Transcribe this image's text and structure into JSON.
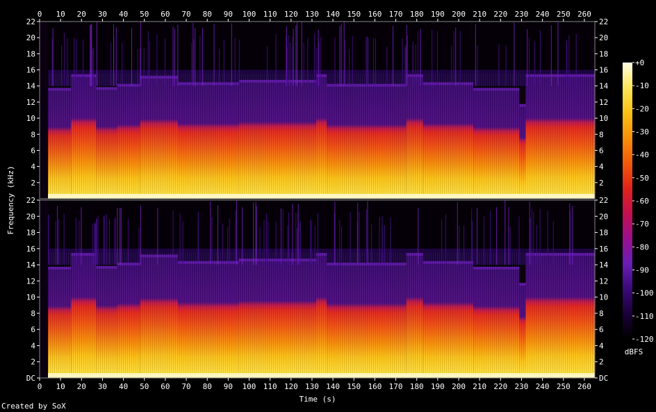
{
  "chart_data": {
    "type": "heatmap",
    "xlabel": "Time (s)",
    "ylabel": "Frequency (kHz)",
    "xlim": [
      0,
      265
    ],
    "ylim": [
      0,
      22
    ],
    "x_ticks": [
      "0",
      "10",
      "20",
      "30",
      "40",
      "50",
      "60",
      "70",
      "80",
      "90",
      "100",
      "110",
      "120",
      "130",
      "140",
      "150",
      "160",
      "170",
      "180",
      "190",
      "200",
      "210",
      "220",
      "230",
      "240",
      "250",
      "260"
    ],
    "y_ticks_channel_top": [
      "2",
      "4",
      "6",
      "8",
      "10",
      "12",
      "14",
      "16",
      "18",
      "20",
      "22"
    ],
    "y_ticks_channel_bottom": [
      "DC",
      "2",
      "4",
      "6",
      "8",
      "10",
      "12",
      "14",
      "16",
      "18",
      "20",
      "22"
    ],
    "channels": 2,
    "colorbar": {
      "label": "dBFS",
      "range": [
        -120,
        0
      ],
      "ticks": [
        "+0",
        "-10",
        "-20",
        "-30",
        "-40",
        "-50",
        "-60",
        "-70",
        "-80",
        "-90",
        "-100",
        "-110",
        "-120"
      ],
      "colors": [
        "#000000",
        "#1a0038",
        "#3b0a7a",
        "#6a1db5",
        "#9a0f8e",
        "#c3104f",
        "#e2231a",
        "#f25a0a",
        "#f9900a",
        "#fcc015",
        "#fde65a",
        "#fffde6"
      ]
    },
    "cutoff_khz_segments": [
      {
        "t_start": 4,
        "t_end": 15,
        "khz": 13.5
      },
      {
        "t_start": 15,
        "t_end": 27,
        "khz": 15.2
      },
      {
        "t_start": 27,
        "t_end": 37,
        "khz": 13.6
      },
      {
        "t_start": 37,
        "t_end": 48,
        "khz": 14.0
      },
      {
        "t_start": 48,
        "t_end": 66,
        "khz": 15.0
      },
      {
        "t_start": 66,
        "t_end": 95,
        "khz": 14.2
      },
      {
        "t_start": 95,
        "t_end": 132,
        "khz": 14.5
      },
      {
        "t_start": 132,
        "t_end": 137,
        "khz": 15.2
      },
      {
        "t_start": 137,
        "t_end": 175,
        "khz": 14.0
      },
      {
        "t_start": 175,
        "t_end": 183,
        "khz": 15.2
      },
      {
        "t_start": 183,
        "t_end": 207,
        "khz": 14.2
      },
      {
        "t_start": 207,
        "t_end": 229,
        "khz": 13.5
      },
      {
        "t_start": 229,
        "t_end": 232,
        "khz": 11.5
      },
      {
        "t_start": 232,
        "t_end": 265,
        "khz": 15.2
      }
    ]
  },
  "footer": {
    "credit": "Created by SoX"
  }
}
